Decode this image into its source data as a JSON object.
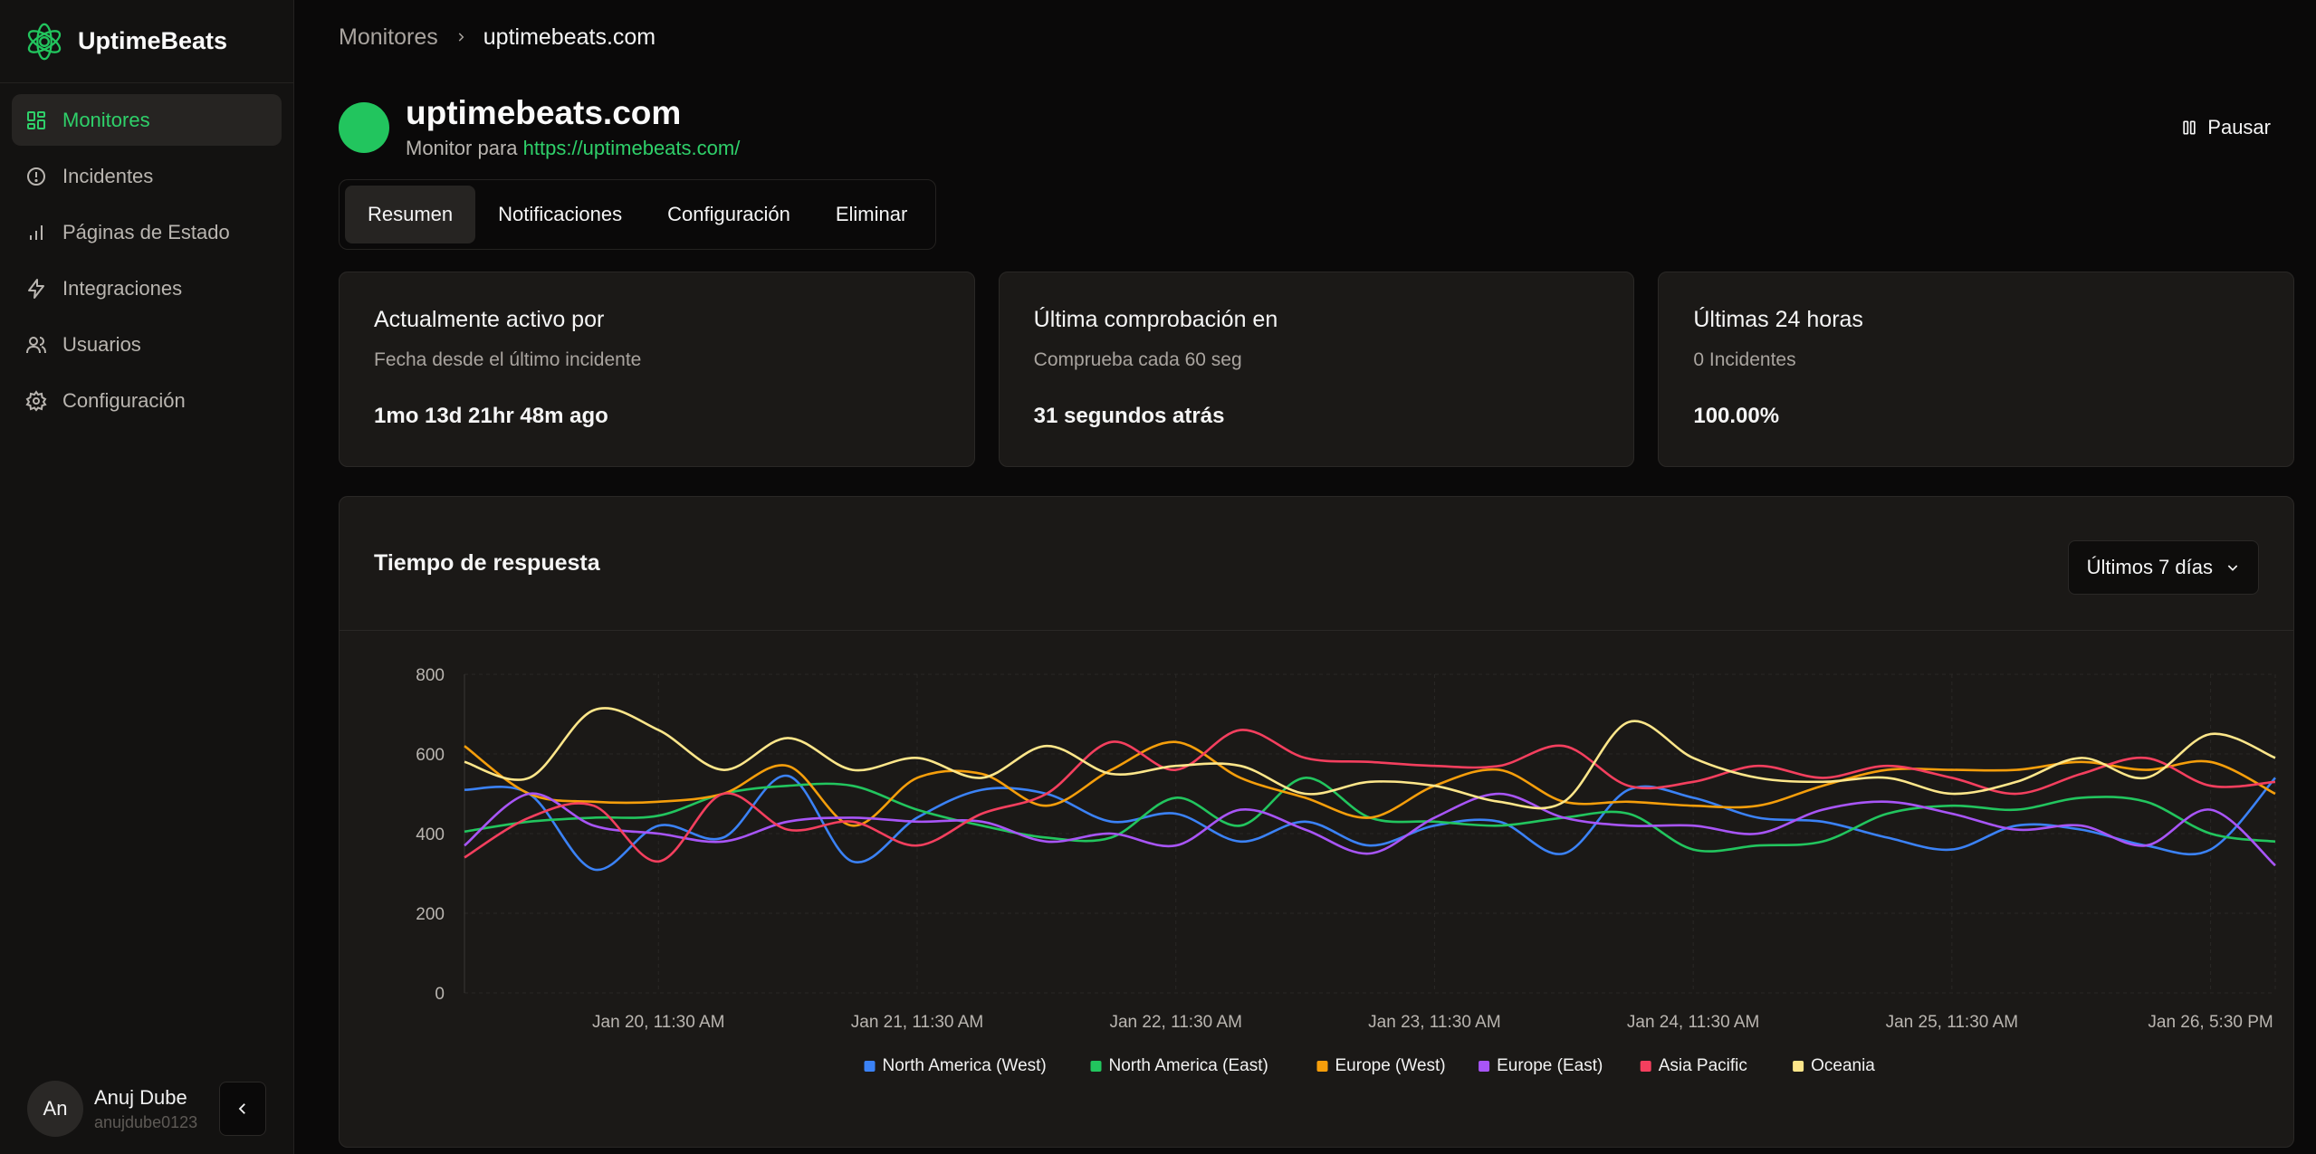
{
  "brand": {
    "name": "UptimeBeats",
    "accent": "#22c55e"
  },
  "sidebar": {
    "items": [
      {
        "label": "Monitores",
        "icon": "dashboard-icon",
        "active": true
      },
      {
        "label": "Incidentes",
        "icon": "alert-circle-icon"
      },
      {
        "label": "Páginas de Estado",
        "icon": "bar-chart-icon"
      },
      {
        "label": "Integraciones",
        "icon": "lightning-icon"
      },
      {
        "label": "Usuarios",
        "icon": "users-icon"
      },
      {
        "label": "Configuración",
        "icon": "gear-icon"
      }
    ],
    "user": {
      "initials": "An",
      "name": "Anuj Dube",
      "handle": "anujdube0123"
    }
  },
  "breadcrumb": {
    "parent": "Monitores",
    "current": "uptimebeats.com"
  },
  "monitor": {
    "title": "uptimebeats.com",
    "subtitle_prefix": "Monitor para",
    "url": "https://uptimebeats.com/",
    "status_color": "#22c55e",
    "pause_label": "Pausar"
  },
  "tabs": [
    {
      "label": "Resumen",
      "active": true
    },
    {
      "label": "Notificaciones"
    },
    {
      "label": "Configuración"
    },
    {
      "label": "Eliminar"
    }
  ],
  "cards": [
    {
      "title": "Actualmente activo por",
      "sub": "Fecha desde el último incidente",
      "value": "1mo 13d 21hr 48m ago"
    },
    {
      "title": "Última comprobación en",
      "sub": "Comprueba cada 60 seg",
      "value": "31 segundos atrás"
    },
    {
      "title": "Últimas 24 horas",
      "sub": "0 Incidentes",
      "value": "100.00%"
    }
  ],
  "chart_section": {
    "title": "Tiempo de respuesta",
    "range_label": "Últimos 7 días"
  },
  "chart_data": {
    "type": "line",
    "title": "",
    "xlabel": "",
    "ylabel": "",
    "ylim": [
      0,
      800
    ],
    "yticks": [
      0,
      200,
      400,
      600,
      800
    ],
    "xlim": [
      0,
      7
    ],
    "xticks": [
      {
        "x": 0.75,
        "label": "Jan 20, 11:30 AM"
      },
      {
        "x": 1.75,
        "label": "Jan 21, 11:30 AM"
      },
      {
        "x": 2.75,
        "label": "Jan 22, 11:30 AM"
      },
      {
        "x": 3.75,
        "label": "Jan 23, 11:30 AM"
      },
      {
        "x": 4.75,
        "label": "Jan 24, 11:30 AM"
      },
      {
        "x": 5.75,
        "label": "Jan 25, 11:30 AM"
      },
      {
        "x": 6.75,
        "label": "Jan 26, 5:30 PM"
      }
    ],
    "grid": true,
    "legend": "bottom",
    "x": [
      0,
      0.25,
      0.5,
      0.75,
      1,
      1.25,
      1.5,
      1.75,
      2,
      2.25,
      2.5,
      2.75,
      3,
      3.25,
      3.5,
      3.75,
      4,
      4.25,
      4.5,
      4.75,
      5,
      5.25,
      5.5,
      5.75,
      6,
      6.25,
      6.5,
      6.75,
      7
    ],
    "series": [
      {
        "name": "North America (West)",
        "color": "#3b82f6",
        "values": [
          510,
          500,
          310,
          420,
          390,
          545,
          330,
          440,
          510,
          500,
          430,
          450,
          380,
          430,
          370,
          420,
          430,
          350,
          510,
          490,
          440,
          430,
          390,
          360,
          420,
          410,
          370,
          360,
          540
        ]
      },
      {
        "name": "North America (East)",
        "color": "#22c55e",
        "values": [
          405,
          430,
          440,
          445,
          500,
          520,
          520,
          460,
          420,
          390,
          390,
          490,
          420,
          540,
          440,
          430,
          420,
          440,
          450,
          360,
          370,
          380,
          450,
          470,
          460,
          490,
          480,
          400,
          380
        ]
      },
      {
        "name": "Europe (West)",
        "color": "#f59e0b",
        "values": [
          620,
          500,
          480,
          480,
          500,
          570,
          420,
          540,
          550,
          470,
          560,
          630,
          540,
          490,
          440,
          520,
          560,
          480,
          480,
          470,
          470,
          520,
          560,
          560,
          560,
          580,
          560,
          580,
          500
        ]
      },
      {
        "name": "Europe (East)",
        "color": "#a855f7",
        "values": [
          370,
          500,
          420,
          400,
          380,
          430,
          440,
          430,
          430,
          380,
          400,
          370,
          460,
          410,
          350,
          440,
          500,
          440,
          420,
          420,
          400,
          460,
          480,
          450,
          410,
          420,
          370,
          460,
          320
        ]
      },
      {
        "name": "Asia Pacific",
        "color": "#f43f5e",
        "values": [
          340,
          440,
          470,
          330,
          500,
          410,
          430,
          370,
          450,
          500,
          630,
          560,
          660,
          590,
          580,
          570,
          570,
          620,
          520,
          530,
          570,
          540,
          570,
          540,
          500,
          550,
          590,
          520,
          530
        ]
      },
      {
        "name": "Oceania",
        "color": "#fde68a",
        "values": [
          580,
          540,
          710,
          660,
          560,
          640,
          560,
          590,
          540,
          620,
          550,
          570,
          570,
          500,
          530,
          520,
          480,
          480,
          680,
          590,
          540,
          530,
          540,
          500,
          530,
          590,
          540,
          650,
          590
        ]
      }
    ]
  }
}
